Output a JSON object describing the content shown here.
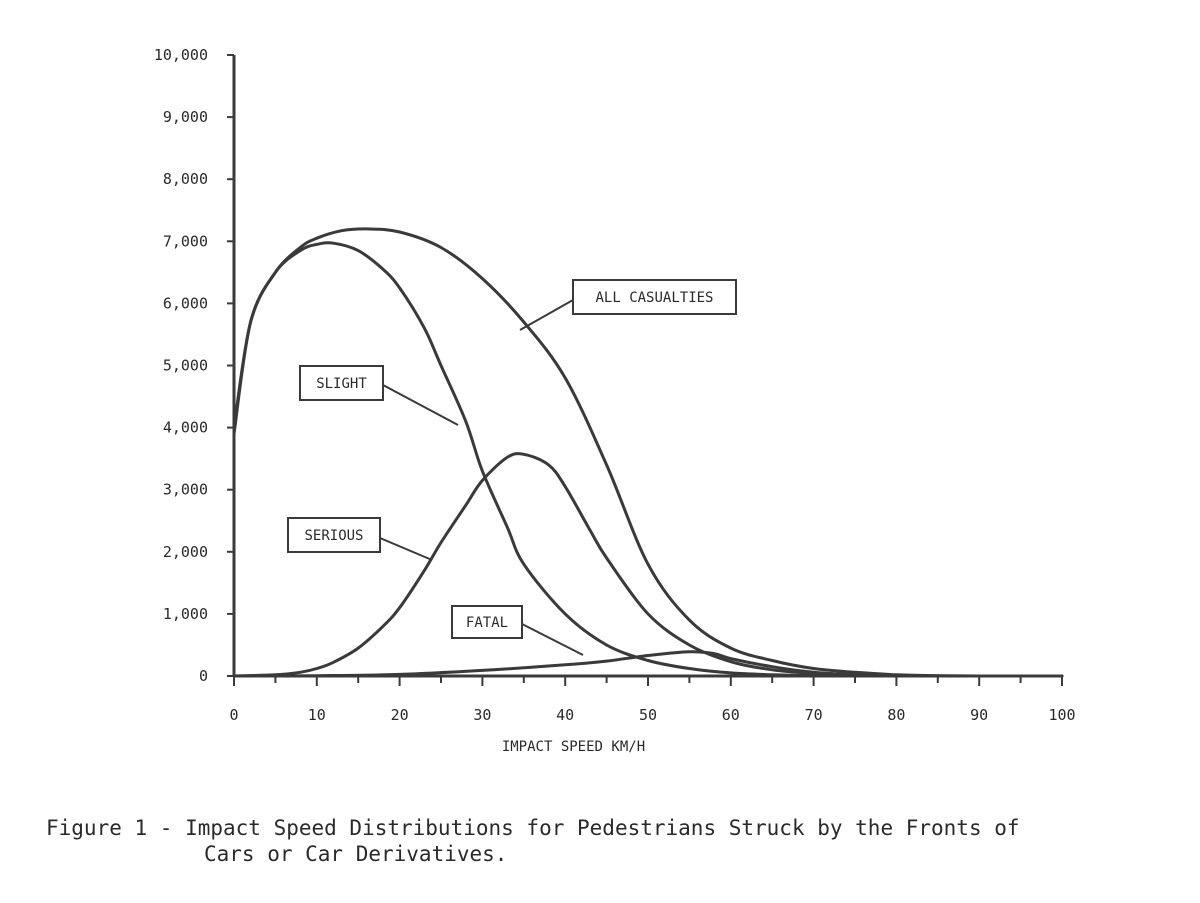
{
  "caption": {
    "line1": "Figure 1 - Impact Speed Distributions for Pedestrians Struck by the Fronts of",
    "line2": "Cars or Car Derivatives."
  },
  "chart_data": {
    "type": "line",
    "title": "",
    "xlabel": "IMPACT SPEED  KM/H",
    "ylabel": "",
    "xlim": [
      0,
      100
    ],
    "ylim": [
      0,
      10000
    ],
    "x_ticks": [
      0,
      10,
      20,
      30,
      40,
      50,
      60,
      70,
      80,
      90,
      100
    ],
    "x_tick_labels": [
      "0",
      "10",
      "20",
      "30",
      "40",
      "50",
      "60",
      "70",
      "80",
      "90",
      "100"
    ],
    "y_ticks": [
      0,
      1000,
      2000,
      3000,
      4000,
      5000,
      6000,
      7000,
      8000,
      9000,
      10000
    ],
    "y_tick_labels": [
      "0",
      "1,000",
      "2,000",
      "3,000",
      "4,000",
      "5,000",
      "6,000",
      "7,000",
      "8,000",
      "9,000",
      "10,000"
    ],
    "grid": false,
    "legend": "none",
    "line_color": "#3a3a3a",
    "series": [
      {
        "name": "ALL CASUALTIES",
        "x": [
          0,
          2,
          5,
          8,
          10,
          13,
          16,
          20,
          25,
          30,
          35,
          40,
          45,
          50,
          55,
          60,
          65,
          70,
          75,
          80,
          85,
          90,
          100
        ],
        "y": [
          3900,
          5700,
          6500,
          6900,
          7050,
          7170,
          7200,
          7150,
          6900,
          6400,
          5700,
          4800,
          3400,
          1800,
          900,
          450,
          250,
          120,
          60,
          20,
          5,
          0,
          0
        ]
      },
      {
        "name": "SLIGHT",
        "x": [
          0,
          2,
          5,
          8,
          10,
          12,
          15,
          18,
          20,
          23,
          25,
          28,
          30,
          33,
          35,
          40,
          45,
          50,
          55,
          60,
          65,
          70,
          75,
          80,
          90,
          100
        ],
        "y": [
          4000,
          5700,
          6500,
          6850,
          6950,
          6970,
          6850,
          6550,
          6250,
          5600,
          5000,
          4100,
          3300,
          2400,
          1800,
          1000,
          500,
          250,
          120,
          50,
          20,
          5,
          0,
          0,
          0,
          0
        ]
      },
      {
        "name": "SERIOUS",
        "x": [
          0,
          5,
          8,
          10,
          12,
          15,
          18,
          20,
          23,
          25,
          28,
          30,
          33,
          35,
          38,
          40,
          43,
          45,
          50,
          55,
          60,
          65,
          70,
          75,
          80,
          90,
          100
        ],
        "y": [
          0,
          20,
          60,
          120,
          220,
          450,
          800,
          1100,
          1700,
          2150,
          2750,
          3150,
          3520,
          3570,
          3400,
          3050,
          2350,
          1900,
          1000,
          500,
          230,
          100,
          40,
          10,
          0,
          0,
          0
        ]
      },
      {
        "name": "FATAL",
        "x": [
          0,
          10,
          20,
          30,
          40,
          45,
          50,
          55,
          58,
          60,
          65,
          70,
          75,
          80,
          90,
          100
        ],
        "y": [
          0,
          5,
          25,
          90,
          180,
          240,
          330,
          390,
          360,
          280,
          150,
          60,
          20,
          5,
          0,
          0
        ]
      }
    ],
    "annotations": [
      "ALL CASUALTIES",
      "SLIGHT",
      "SERIOUS",
      "FATAL"
    ]
  }
}
